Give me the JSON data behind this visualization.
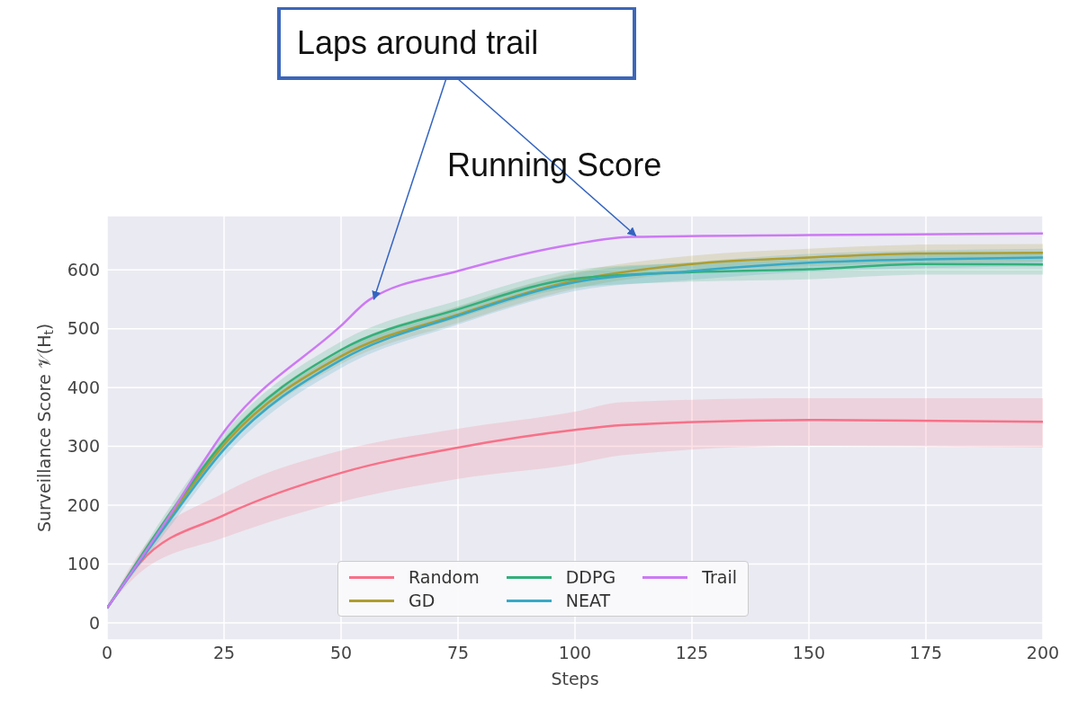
{
  "chart_data": {
    "type": "line",
    "xlabel": "Steps",
    "ylabel": "Surveillance Score 𝒱(H$_{t}$)",
    "xlim": [
      0,
      200
    ],
    "xticks": [
      0,
      25,
      50,
      75,
      100,
      125,
      150,
      175,
      200
    ],
    "ylim": [
      -29,
      692
    ],
    "yticks": [
      0,
      100,
      200,
      300,
      400,
      500,
      600
    ],
    "grid": true,
    "legend": "bottom",
    "marker": "none",
    "line_style": "solid",
    "annotations": [
      {
        "text": "Laps around trail",
        "x": 57,
        "y": 550
      },
      {
        "text": "Running Score",
        "x": 113,
        "y": 658
      }
    ],
    "series": [
      {
        "name": "Random",
        "color": "#f77189",
        "x": [
          0,
          7,
          25,
          50,
          75,
          100,
          110,
          150,
          200
        ],
        "values": [
          25,
          102,
          183,
          255,
          298,
          328,
          336,
          345,
          342
        ],
        "lower": [
          25,
          85,
          145,
          206,
          245,
          270,
          285,
          301,
          298
        ],
        "upper": [
          25,
          120,
          221,
          293,
          330,
          359,
          375,
          382,
          382
        ]
      },
      {
        "name": "GD",
        "color": "#ae9d31",
        "x": [
          0,
          12.5,
          25,
          50,
          75,
          100,
          125,
          150,
          175,
          200
        ],
        "values": [
          25,
          170,
          303,
          453,
          524,
          582,
          610,
          621,
          628,
          629
        ],
        "lower": [
          25,
          160,
          292,
          440,
          510,
          568,
          596,
          606,
          612,
          614
        ],
        "upper": [
          25,
          180,
          314,
          466,
          538,
          596,
          624,
          636,
          643,
          644
        ]
      },
      {
        "name": "DDPG",
        "color": "#33b07a",
        "x": [
          0,
          12.5,
          25,
          50,
          75,
          100,
          125,
          150,
          175,
          200
        ],
        "values": [
          25,
          175,
          309,
          464,
          533,
          585,
          596,
          601,
          610,
          609
        ],
        "lower": [
          25,
          164,
          296,
          450,
          518,
          570,
          580,
          584,
          592,
          592
        ],
        "upper": [
          25,
          186,
          322,
          478,
          548,
          600,
          612,
          618,
          628,
          628
        ]
      },
      {
        "name": "NEAT",
        "color": "#38a9c5",
        "x": [
          0,
          12.5,
          25,
          50,
          75,
          100,
          125,
          150,
          175,
          200
        ],
        "values": [
          25,
          165,
          295,
          447,
          522,
          579,
          598,
          612,
          618,
          621
        ],
        "lower": [
          25,
          154,
          282,
          433,
          507,
          564,
          583,
          597,
          603,
          606
        ],
        "upper": [
          25,
          176,
          308,
          461,
          537,
          594,
          613,
          627,
          633,
          636
        ]
      },
      {
        "name": "Trail",
        "color": "#cc7af4",
        "x": [
          0,
          12.5,
          25,
          50,
          56,
          75,
          100,
          112,
          150,
          200
        ],
        "values": [
          25,
          172,
          325,
          505,
          549,
          598,
          644,
          656,
          659,
          662
        ]
      }
    ]
  }
}
